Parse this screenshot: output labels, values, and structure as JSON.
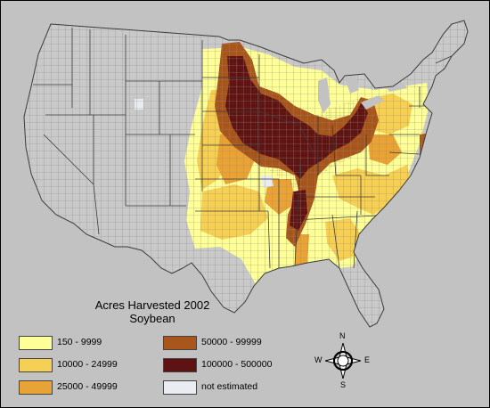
{
  "title": "Acres Harvested 2002",
  "subtitle": "Soybean",
  "legend": [
    {
      "label": "150 - 9999",
      "color": "#ffff99"
    },
    {
      "label": "10000 - 24999",
      "color": "#f6cf55"
    },
    {
      "label": "25000 - 49999",
      "color": "#e8a235"
    },
    {
      "label": "50000 - 99999",
      "color": "#a8561b"
    },
    {
      "label": "100000 - 500000",
      "color": "#5e1212"
    },
    {
      "label": "not estimated",
      "color": "#e9edf2"
    }
  ],
  "compass": {
    "n": "N",
    "s": "S",
    "e": "E",
    "w": "W"
  },
  "colors": {
    "background": "#c2c2c2",
    "county_lines": "#8f8f8f",
    "state_lines": "#3c3c3c"
  },
  "icons": [
    "compass-rose-icon"
  ]
}
